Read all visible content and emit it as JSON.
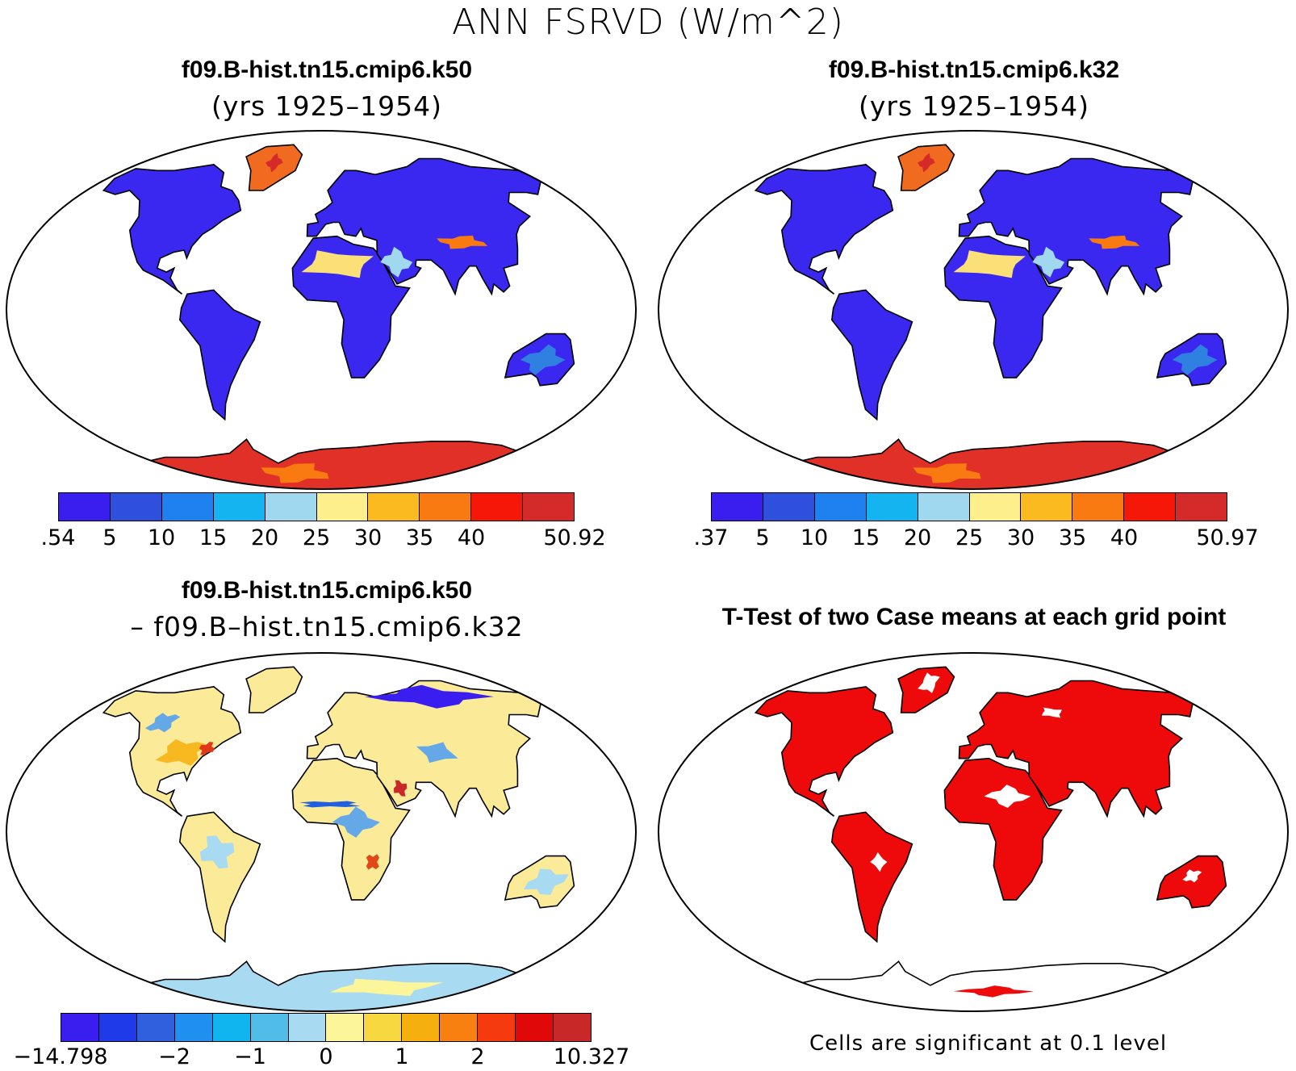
{
  "title": "ANN FSRVD (W/m^2)",
  "panels": {
    "top_left": {
      "title": "f09.B-hist.tn15.cmip6.k50",
      "subtitle": "(yrs 1925–1954)"
    },
    "top_right": {
      "title": "f09.B-hist.tn15.cmip6.k32",
      "subtitle": "(yrs 1925–1954)"
    },
    "bottom_left": {
      "title": "f09.B-hist.tn15.cmip6.k50",
      "subtitle": "– f09.B–hist.tn15.cmip6.k32"
    },
    "bottom_right": {
      "title": "T-Test of two Case means at each grid point",
      "note": "Cells are significant at 0.1 level"
    }
  },
  "colorbars": {
    "case1": {
      "colors": [
        "#3a1ef0",
        "#2f4fdd",
        "#1f80f0",
        "#14b4f0",
        "#a0d8f0",
        "#fdf08c",
        "#fbbb20",
        "#f87a10",
        "#f51808",
        "#d52a2a"
      ],
      "labels": [
        ".54",
        "5",
        "10",
        "15",
        "20",
        "25",
        "30",
        "35",
        "40",
        "50.92"
      ]
    },
    "case2": {
      "colors": [
        "#3a1ef0",
        "#2f4fdd",
        "#1f80f0",
        "#14b4f0",
        "#a0d8f0",
        "#fdf08c",
        "#fbbb20",
        "#f87a10",
        "#f51808",
        "#d52a2a"
      ],
      "labels": [
        ".37",
        "5",
        "10",
        "15",
        "20",
        "25",
        "30",
        "35",
        "40",
        "50.97"
      ]
    },
    "diff": {
      "colors": [
        "#3a1ef0",
        "#1f3ae8",
        "#3060dd",
        "#2090f0",
        "#10b4ee",
        "#50bce8",
        "#a8daf2",
        "#fdf59a",
        "#f8d840",
        "#f5b010",
        "#f88010",
        "#f53a10",
        "#e00808",
        "#c82828"
      ],
      "labels": [
        "−14.798",
        "−2",
        "−1",
        "0",
        "1",
        "2",
        "10.327"
      ]
    }
  },
  "map_colors": {
    "case_ocean": "#ffffff",
    "case_land": "#3a28f0",
    "case_sahara": "#fbe078",
    "case_antarctica": "#e03028",
    "case_greenland": "#f06a20",
    "diff_land": "#fbeb98",
    "diff_blue": "#64a8e8",
    "ttest_sig": "#ee0a0a",
    "ttest_antarctica": "#ffffff"
  }
}
